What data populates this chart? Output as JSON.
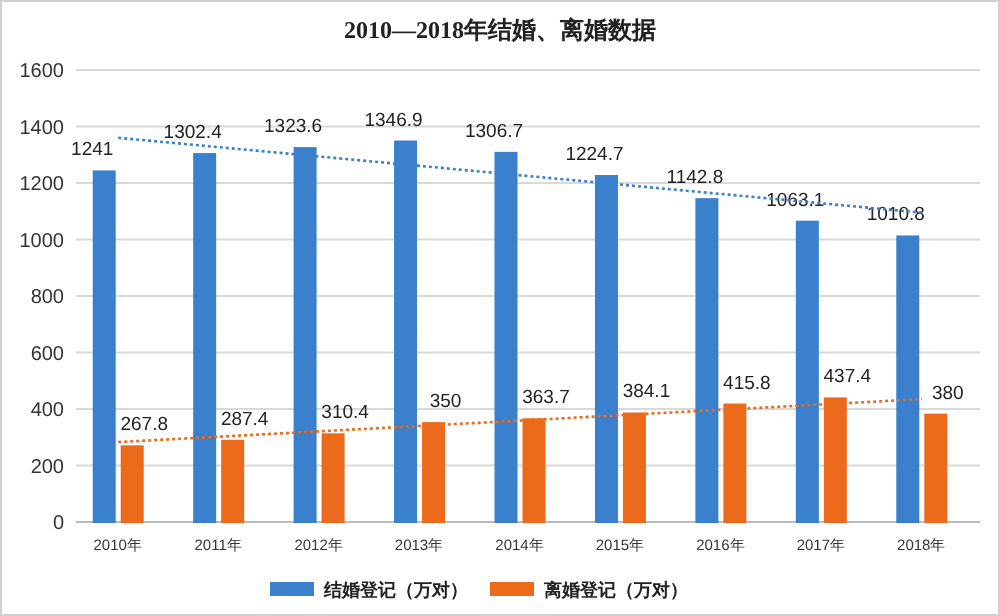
{
  "chart_data": {
    "type": "bar",
    "title": "2010—2018年结婚、离婚数据",
    "categories": [
      "2010年",
      "2011年",
      "2012年",
      "2013年",
      "2014年",
      "2015年",
      "2016年",
      "2017年",
      "2018年"
    ],
    "series": [
      {
        "name": "结婚登记（万对）",
        "color": "#3a80cc",
        "values": [
          1241,
          1302.4,
          1323.6,
          1346.9,
          1306.7,
          1224.7,
          1142.8,
          1063.1,
          1010.8
        ],
        "value_labels": [
          "1241",
          "1302.4",
          "1323.6",
          "1346.9",
          "1306.7",
          "1224.7",
          "1142.8",
          "1063.1",
          "1010.8"
        ]
      },
      {
        "name": "离婚登记（万对）",
        "color": "#ec6a1c",
        "values": [
          267.8,
          287.4,
          310.4,
          350,
          363.7,
          384.1,
          415.8,
          437.4,
          380
        ],
        "value_labels": [
          "267.8",
          "287.4",
          "310.4",
          "350",
          "363.7",
          "384.1",
          "415.8",
          "437.4",
          "380"
        ]
      },
      {
        "type": "line",
        "color": "#3a80cc",
        "line_style": "dotted",
        "x": [
          "2010年",
          "2018年"
        ],
        "values": [
          1360,
          1095
        ]
      },
      {
        "type": "line",
        "color": "#ec6a1c",
        "line_style": "dotted",
        "x": [
          "2010年",
          "2018年"
        ],
        "values": [
          283,
          435
        ]
      }
    ],
    "ylim": [
      0,
      1600
    ],
    "yticks": [
      0,
      200,
      400,
      600,
      800,
      1000,
      1200,
      1400,
      1600
    ],
    "grid": "y",
    "legend": "bottom"
  }
}
